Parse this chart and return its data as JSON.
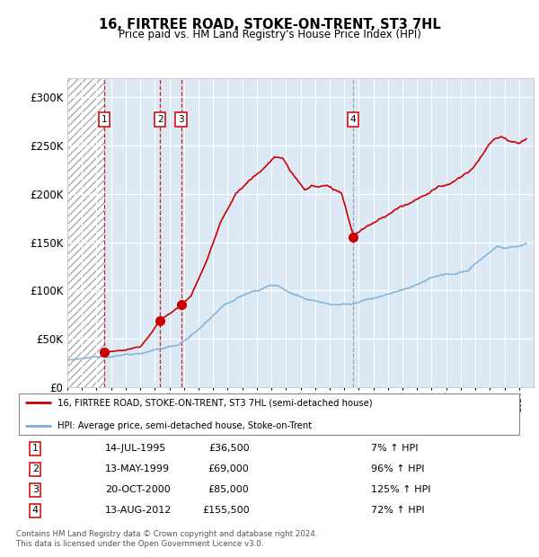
{
  "title1": "16, FIRTREE ROAD, STOKE-ON-TRENT, ST3 7HL",
  "title2": "Price paid vs. HM Land Registry's House Price Index (HPI)",
  "ylim": [
    0,
    320000
  ],
  "yticks": [
    0,
    50000,
    100000,
    150000,
    200000,
    250000,
    300000
  ],
  "ytick_labels": [
    "£0",
    "£50K",
    "£100K",
    "£150K",
    "£200K",
    "£250K",
    "£300K"
  ],
  "bg_light_blue": "#dce9f5",
  "sale_color": "#cc0000",
  "hpi_color": "#7bafd4",
  "legend_sale": "16, FIRTREE ROAD, STOKE-ON-TRENT, ST3 7HL (semi-detached house)",
  "legend_hpi": "HPI: Average price, semi-detached house, Stoke-on-Trent",
  "sales": [
    {
      "num": 1,
      "date_year": 1995.54,
      "price": 36500
    },
    {
      "num": 2,
      "date_year": 1999.36,
      "price": 69000
    },
    {
      "num": 3,
      "date_year": 2000.8,
      "price": 85000
    },
    {
      "num": 4,
      "date_year": 2012.62,
      "price": 155500
    }
  ],
  "sale_vline_colors": [
    "#cc0000",
    "#cc0000",
    "#cc0000",
    "#8899aa"
  ],
  "footer": "Contains HM Land Registry data © Crown copyright and database right 2024.\nThis data is licensed under the Open Government Licence v3.0.",
  "xmin": 1993.0,
  "xmax": 2025.0,
  "hatch_end": 1995.54,
  "rows": [
    [
      "1",
      "14-JUL-1995",
      "£36,500",
      "7% ↑ HPI"
    ],
    [
      "2",
      "13-MAY-1999",
      "£69,000",
      "96% ↑ HPI"
    ],
    [
      "3",
      "20-OCT-2000",
      "£85,000",
      "125% ↑ HPI"
    ],
    [
      "4",
      "13-AUG-2012",
      "£155,500",
      "72% ↑ HPI"
    ]
  ]
}
